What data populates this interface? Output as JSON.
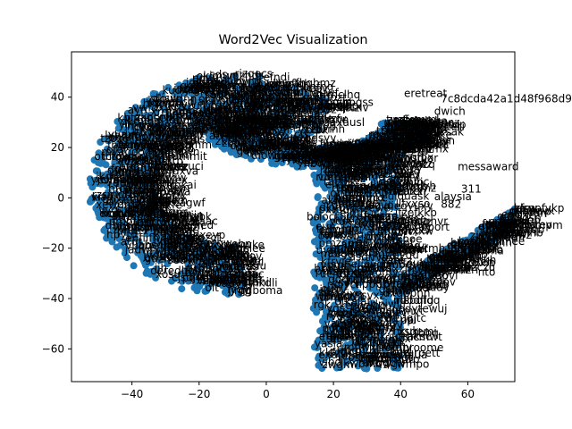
{
  "chart_data": {
    "type": "scatter",
    "title": "Word2Vec Visualization",
    "xlabel": "",
    "ylabel": "",
    "xlim": [
      -58,
      74
    ],
    "ylim": [
      -73,
      58
    ],
    "xticks": [
      -40,
      -20,
      0,
      20,
      40,
      60
    ],
    "yticks": [
      40,
      20,
      0,
      -20,
      -40,
      -60
    ],
    "xtick_labels": [
      "−40",
      "−20",
      "0",
      "20",
      "40",
      "60"
    ],
    "ytick_labels": [
      "40",
      "20",
      "0",
      "−20",
      "−40",
      "−60"
    ],
    "grid": false,
    "legend": "none",
    "marker_color": "#1f77b4",
    "text_color": "#000000",
    "visible_word_labels": [
      {
        "text": "eretreat",
        "x": 41,
        "y": 40
      },
      {
        "text": "7c8dcda42a1d48f968d9",
        "x": 52,
        "y": 38
      },
      {
        "text": "dwich",
        "x": 50,
        "y": 33
      },
      {
        "text": "steri",
        "x": 52,
        "y": 27
      },
      {
        "text": "gerday",
        "x": 8,
        "y": 18
      },
      {
        "text": "ummit",
        "x": -28,
        "y": 15
      },
      {
        "text": "messaward",
        "x": 57,
        "y": 11
      },
      {
        "text": "311",
        "x": 58,
        "y": 2
      },
      {
        "text": "alaysia",
        "x": 50,
        "y": -1
      },
      {
        "text": "882",
        "x": 52,
        "y": -4
      },
      {
        "text": "pport",
        "x": 46,
        "y": -13
      },
      {
        "text": "aphi",
        "x": 61,
        "y": -20
      },
      {
        "text": "ent",
        "x": 70,
        "y": -8
      },
      {
        "text": "ak",
        "x": 71,
        "y": -11
      },
      {
        "text": "bo",
        "x": 12,
        "y": -9
      },
      {
        "text": "sday",
        "x": 47,
        "y": -37
      },
      {
        "text": "nto",
        "x": 63,
        "y": -31
      },
      {
        "text": "ip",
        "x": 41,
        "y": -50
      },
      {
        "text": "tbbq",
        "x": 44,
        "y": -55
      },
      {
        "text": "esign",
        "x": 30,
        "y": -64
      },
      {
        "text": "mb",
        "x": -25,
        "y": -17
      },
      {
        "text": "own",
        "x": 35,
        "y": -60
      }
    ],
    "point_regions": [
      {
        "name": "left-arc",
        "cx": -10,
        "cy": 5,
        "rx": 43,
        "ry": 44,
        "start_deg": 40,
        "end_deg": 275,
        "count": 900
      },
      {
        "name": "upper-band",
        "cx": 15,
        "cy": 30,
        "rx": 35,
        "ry": 18,
        "start_deg": 180,
        "end_deg": 360,
        "count": 450
      },
      {
        "name": "right-column",
        "x0": 14,
        "x1": 40,
        "y0": -68,
        "y1": 20,
        "count": 600
      },
      {
        "name": "right-arm",
        "x0": 40,
        "x1": 74,
        "y0": -35,
        "y1": -8,
        "count": 220
      }
    ]
  }
}
